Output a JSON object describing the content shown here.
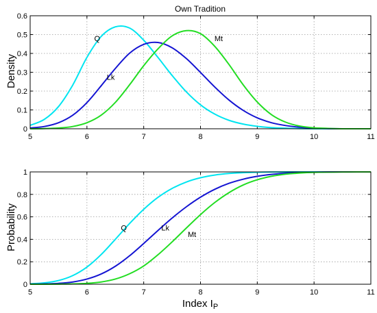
{
  "colors": {
    "Q": "#00e5f0",
    "Lk": "#1414d2",
    "Mt": "#22dd22"
  },
  "chart_data": [
    {
      "type": "line",
      "title": "Own Tradition",
      "xlabel": "",
      "ylabel": "Density",
      "xlim": [
        5,
        11
      ],
      "ylim": [
        0,
        0.6
      ],
      "xticks": [
        "5",
        "6",
        "7",
        "8",
        "9",
        "10",
        "11"
      ],
      "yticks": [
        "0",
        "0.1",
        "0.2",
        "0.3",
        "0.4",
        "0.5",
        "0.6"
      ],
      "grid": true,
      "x": [
        5.0,
        5.25,
        5.5,
        5.75,
        6.0,
        6.25,
        6.5,
        6.75,
        7.0,
        7.25,
        7.5,
        7.75,
        8.0,
        8.25,
        8.5,
        8.75,
        9.0,
        9.25,
        9.5,
        9.75,
        10.0,
        10.25,
        10.5,
        10.75,
        11.0
      ],
      "series": [
        {
          "name": "Q",
          "color_key": "Q",
          "label_at": [
            6.18,
            0.465
          ],
          "values": [
            0.018,
            0.05,
            0.118,
            0.232,
            0.379,
            0.49,
            0.541,
            0.535,
            0.47,
            0.379,
            0.283,
            0.196,
            0.127,
            0.078,
            0.045,
            0.025,
            0.013,
            0.006,
            0.003,
            0.001,
            0.0,
            0.0,
            0.0,
            0.0,
            0.0
          ]
        },
        {
          "name": "Lk",
          "color_key": "Lk",
          "label_at": [
            6.42,
            0.26
          ],
          "values": [
            0.004,
            0.012,
            0.032,
            0.072,
            0.139,
            0.228,
            0.32,
            0.401,
            0.448,
            0.458,
            0.43,
            0.373,
            0.299,
            0.222,
            0.153,
            0.098,
            0.058,
            0.032,
            0.017,
            0.008,
            0.003,
            0.001,
            0.0,
            0.0,
            0.0
          ]
        },
        {
          "name": "Mt",
          "color_key": "Mt",
          "label_at": [
            8.32,
            0.465
          ],
          "values": [
            0.0,
            0.001,
            0.004,
            0.012,
            0.032,
            0.072,
            0.14,
            0.233,
            0.335,
            0.424,
            0.493,
            0.521,
            0.505,
            0.438,
            0.342,
            0.234,
            0.142,
            0.075,
            0.035,
            0.014,
            0.005,
            0.002,
            0.0,
            0.0,
            0.0
          ]
        }
      ]
    },
    {
      "type": "line",
      "title": "",
      "xlabel": "Index I",
      "xlabel_sub": "P",
      "ylabel": "Probability",
      "xlim": [
        5,
        11
      ],
      "ylim": [
        0,
        1
      ],
      "xticks": [
        "5",
        "6",
        "7",
        "8",
        "9",
        "10",
        "11"
      ],
      "yticks": [
        "0",
        "0.2",
        "0.4",
        "0.6",
        "0.8",
        "1"
      ],
      "grid": true,
      "x": [
        5.0,
        5.25,
        5.5,
        5.75,
        6.0,
        6.25,
        6.5,
        6.75,
        7.0,
        7.25,
        7.5,
        7.75,
        8.0,
        8.25,
        8.5,
        8.75,
        9.0,
        9.25,
        9.5,
        9.75,
        10.0,
        10.25,
        10.5,
        10.75,
        11.0
      ],
      "series": [
        {
          "name": "Q",
          "color_key": "Q",
          "label_at": [
            6.65,
            0.48
          ],
          "values": [
            0.004,
            0.012,
            0.033,
            0.077,
            0.153,
            0.264,
            0.4,
            0.54,
            0.667,
            0.773,
            0.853,
            0.91,
            0.948,
            0.972,
            0.986,
            0.993,
            0.997,
            0.999,
            1.0,
            1.0,
            1.0,
            1.0,
            1.0,
            1.0,
            1.0
          ]
        },
        {
          "name": "Lk",
          "color_key": "Lk",
          "label_at": [
            7.38,
            0.48
          ],
          "values": [
            0.001,
            0.003,
            0.008,
            0.02,
            0.046,
            0.091,
            0.16,
            0.253,
            0.363,
            0.478,
            0.589,
            0.689,
            0.775,
            0.845,
            0.898,
            0.935,
            0.961,
            0.978,
            0.988,
            0.994,
            0.997,
            0.999,
            1.0,
            1.0,
            1.0
          ]
        },
        {
          "name": "Mt",
          "color_key": "Mt",
          "label_at": [
            7.85,
            0.42
          ],
          "values": [
            0.0,
            0.0,
            0.001,
            0.003,
            0.008,
            0.02,
            0.046,
            0.093,
            0.163,
            0.262,
            0.377,
            0.5,
            0.62,
            0.727,
            0.815,
            0.883,
            0.93,
            0.961,
            0.98,
            0.99,
            0.996,
            0.998,
            0.999,
            1.0,
            1.0
          ]
        }
      ]
    }
  ]
}
